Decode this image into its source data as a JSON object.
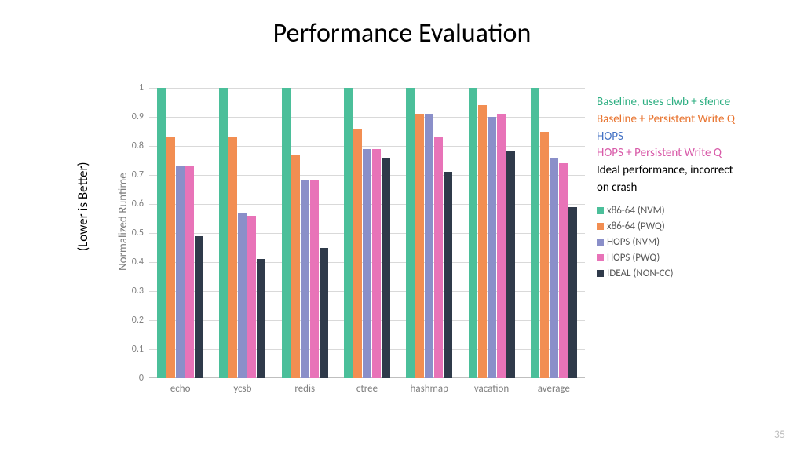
{
  "title": "Performance Evaluation",
  "outer_y_label": "(Lower is Better)",
  "y_label": "Normalized Runtime",
  "page_number": "35",
  "y_axis": {
    "min": 0,
    "max": 1,
    "step": 0.1
  },
  "colors": {
    "series": [
      "#4bbf9a",
      "#f28e52",
      "#8a8fc9",
      "#e873b8",
      "#2f3a4a"
    ],
    "grid": "#d9d9d9",
    "axis_text": "#7f7f7f",
    "title_text": "#000000",
    "background": "#ffffff"
  },
  "legend_desc": [
    {
      "text": "Baseline, uses clwb + sfence",
      "color": "#2eaf82"
    },
    {
      "text": "Baseline + Persistent Write Q",
      "color": "#e8732e"
    },
    {
      "text": "HOPS",
      "color": "#4472c4"
    },
    {
      "text": "HOPS + Persistent Write Q",
      "color": "#d85aa8"
    },
    {
      "text": "Ideal performance, incorrect",
      "color": "#000000"
    },
    {
      "text": "on crash",
      "color": "#000000"
    }
  ],
  "legend_swatch": [
    {
      "label": "x86-64 (NVM)",
      "color": "#4bbf9a"
    },
    {
      "label": "x86-64 (PWQ)",
      "color": "#f28e52"
    },
    {
      "label": "HOPS (NVM)",
      "color": "#8a8fc9"
    },
    {
      "label": "HOPS (PWQ)",
      "color": "#e873b8"
    },
    {
      "label": "IDEAL (NON-CC)",
      "color": "#2f3a4a"
    }
  ],
  "categories": [
    "echo",
    "ycsb",
    "redis",
    "ctree",
    "hashmap",
    "vacation",
    "average"
  ],
  "series": [
    {
      "name": "x86-64 (NVM)",
      "values": [
        1.0,
        1.0,
        1.0,
        1.0,
        1.0,
        1.0,
        1.0
      ]
    },
    {
      "name": "x86-64 (PWQ)",
      "values": [
        0.83,
        0.83,
        0.77,
        0.86,
        0.91,
        0.94,
        0.85
      ]
    },
    {
      "name": "HOPS (NVM)",
      "values": [
        0.73,
        0.57,
        0.68,
        0.79,
        0.91,
        0.9,
        0.76
      ]
    },
    {
      "name": "HOPS (PWQ)",
      "values": [
        0.73,
        0.56,
        0.68,
        0.79,
        0.83,
        0.91,
        0.74
      ]
    },
    {
      "name": "IDEAL (NON-CC)",
      "values": [
        0.49,
        0.41,
        0.45,
        0.76,
        0.71,
        0.78,
        0.59
      ]
    }
  ]
}
